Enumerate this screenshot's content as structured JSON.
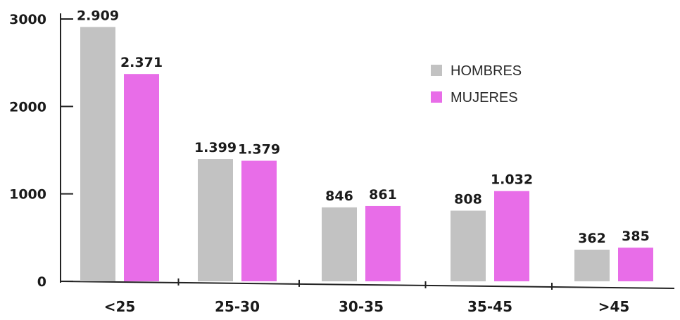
{
  "chart_data": {
    "type": "bar",
    "categories": [
      "<25",
      "25-30",
      "30-35",
      "35-45",
      ">45"
    ],
    "series": [
      {
        "name": "HOMBRES",
        "values": [
          2909,
          1399,
          846,
          808,
          362
        ],
        "labels": [
          "2.909",
          "1.399",
          "846",
          "808",
          "362"
        ],
        "color": "#c2c2c2"
      },
      {
        "name": "MUJERES",
        "values": [
          2371,
          1379,
          861,
          1032,
          385
        ],
        "labels": [
          "2.371",
          "1.379",
          "861",
          "1.032",
          "385"
        ],
        "color": "#e86de8"
      }
    ],
    "ylim": [
      0,
      3000
    ],
    "yticks": [
      0,
      1000,
      2000,
      3000
    ],
    "ytick_labels": [
      "0",
      "1000",
      "2000",
      "3000"
    ],
    "legend_position": "top-right",
    "grid": false,
    "title": "",
    "xlabel": "",
    "ylabel": ""
  }
}
